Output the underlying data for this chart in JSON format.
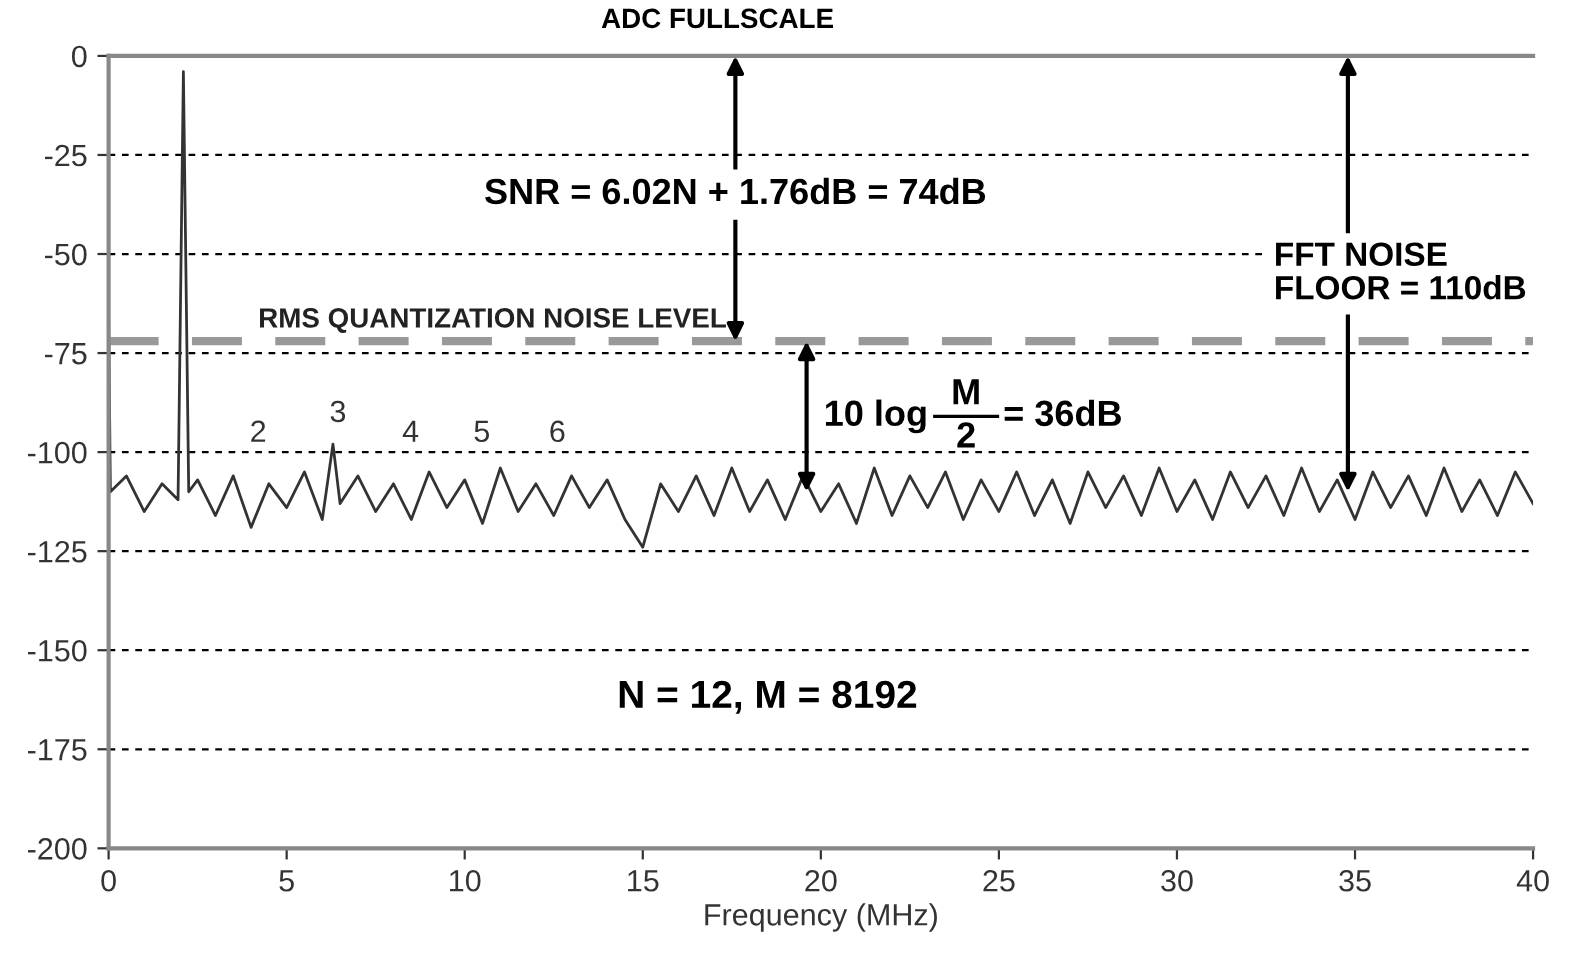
{
  "chart_data": {
    "type": "line",
    "xlabel": "Frequency (MHz)",
    "xlim": [
      0,
      40
    ],
    "xticks": [
      0,
      5,
      10,
      15,
      20,
      25,
      30,
      35,
      40
    ],
    "ylim": [
      -200,
      0
    ],
    "yticks": [
      -200,
      -175,
      -150,
      -125,
      -100,
      -75,
      -50,
      -25,
      0
    ],
    "grid": "y",
    "series": [
      {
        "color": "#333333",
        "x": [
          0,
          0.05,
          0.5,
          1,
          1.5,
          1.95,
          2.1,
          2.25,
          2.5,
          3,
          3.5,
          4,
          4.5,
          5,
          5.5,
          6,
          6.3,
          6.5,
          7,
          7.5,
          8,
          8.5,
          9,
          9.5,
          10,
          10.5,
          11,
          11.5,
          12,
          12.5,
          13,
          13.5,
          14,
          14.5,
          15,
          15.5,
          16,
          16.5,
          17,
          17.5,
          18,
          18.5,
          19,
          19.5,
          20,
          20.5,
          21,
          21.5,
          22,
          22.5,
          23,
          23.5,
          24,
          24.5,
          25,
          25.5,
          26,
          26.5,
          27,
          27.5,
          28,
          28.5,
          29,
          29.5,
          30,
          30.5,
          31,
          31.5,
          32,
          32.5,
          33,
          33.5,
          34,
          34.5,
          35,
          35.5,
          36,
          36.5,
          37,
          37.5,
          38,
          38.5,
          39,
          39.5,
          40
        ],
        "values": [
          -65,
          -110,
          -106,
          -115,
          -108,
          -112,
          -4,
          -110,
          -107,
          -116,
          -106,
          -119,
          -108,
          -114,
          -105,
          -117,
          -98,
          -113,
          -106,
          -115,
          -108,
          -117,
          -105,
          -114,
          -107,
          -118,
          -104,
          -115,
          -108,
          -116,
          -106,
          -114,
          -107,
          -117,
          -124,
          -108,
          -115,
          -106,
          -116,
          -104,
          -115,
          -107,
          -117,
          -106,
          -115,
          -108,
          -118,
          -104,
          -116,
          -106,
          -114,
          -105,
          -117,
          -107,
          -115,
          -105,
          -116,
          -107,
          -118,
          -105,
          -114,
          -106,
          -116,
          -104,
          -115,
          -107,
          -117,
          -105,
          -114,
          -106,
          -116,
          -104,
          -115,
          -107,
          -117,
          -105,
          -114,
          -106,
          -116,
          -104,
          -115,
          -107,
          -116,
          -105,
          -113
        ]
      }
    ],
    "ref_lines": [
      {
        "axis": "y",
        "value": -72,
        "label": "RMS QUANTIZATION NOISE LEVEL",
        "color": "#999999",
        "line_style": "dashed"
      }
    ],
    "annotations": [
      "SNR = 6.02N + 1.76dB = 74dB",
      "10 log",
      "FFT NOISE\nFLOOR = 110dB",
      "ADC FULLSCALE",
      "N = 12, M = 8192",
      "M",
      "2",
      "= 36dB",
      "2",
      "3",
      "4",
      "5",
      "6"
    ]
  }
}
